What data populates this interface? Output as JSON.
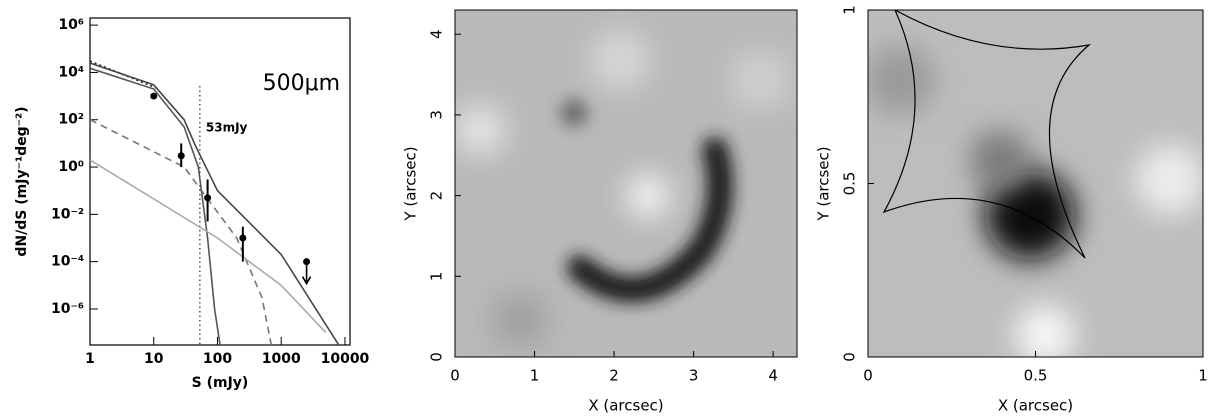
{
  "chart_data": [
    {
      "type": "line",
      "title": "500μm",
      "annotation": "53mJy",
      "vline": 53,
      "xlabel": "S (mJy)",
      "ylabel": "dN/dS (mJy⁻¹deg⁻²)",
      "xlog": true,
      "ylog": true,
      "xlim": [
        1,
        12000
      ],
      "ylim": [
        3e-08,
        2000000
      ],
      "xticks": [
        1,
        10,
        100,
        1000,
        10000
      ],
      "yticks": [
        {
          "value": 1000000,
          "label": "10⁶"
        },
        {
          "value": 10000,
          "label": "10⁴"
        },
        {
          "value": 100,
          "label": "10²"
        },
        {
          "value": 1,
          "label": "10⁰"
        },
        {
          "value": 0.01,
          "label": "10⁻²"
        },
        {
          "value": 0.0001,
          "label": "10⁻⁴"
        },
        {
          "value": 1e-06,
          "label": "10⁻⁶"
        }
      ],
      "series": [
        {
          "color": "#222222",
          "dash": "2,3",
          "x": [
            1,
            12
          ],
          "values": [
            30000,
            2000
          ]
        },
        {
          "color": "#444444",
          "dash": "none",
          "x": [
            1,
            10,
            30,
            45,
            100,
            1000,
            8000
          ],
          "values": [
            25000,
            3000,
            100,
            8,
            0.1,
            0.0002,
            3e-08
          ]
        },
        {
          "color": "#555555",
          "dash": "none",
          "x": [
            1,
            10,
            30,
            50,
            70,
            90,
            110
          ],
          "values": [
            15000,
            2000,
            50,
            1,
            0.001,
            1e-06,
            3e-08
          ]
        },
        {
          "color": "#777777",
          "dash": "7,5",
          "x": [
            1,
            30,
            200,
            500,
            700
          ],
          "values": [
            100,
            1,
            0.001,
            3e-06,
            3e-08
          ]
        },
        {
          "color": "#aaaaaa",
          "dash": "none",
          "x": [
            1,
            100,
            1000,
            5000
          ],
          "values": [
            2,
            0.001,
            1e-05,
            1e-07
          ]
        }
      ],
      "points": {
        "x": [
          10,
          27,
          70,
          250,
          2500
        ],
        "values": [
          1000,
          3,
          0.05,
          0.001,
          0.0001
        ],
        "err_low": [
          null,
          1,
          0.005,
          0.0001,
          null
        ],
        "err_high": [
          null,
          10,
          0.3,
          0.003,
          null
        ],
        "upper_limit": [
          false,
          false,
          false,
          false,
          true
        ]
      }
    },
    {
      "type": "image",
      "xlabel": "X (arcsec)",
      "ylabel": "Y (arcsec)",
      "xlim": [
        0,
        4.3
      ],
      "ylim": [
        0,
        4.3
      ],
      "xticks": [
        0,
        1,
        2,
        3,
        4
      ],
      "yticks": [
        0,
        1,
        2,
        3,
        4
      ]
    },
    {
      "type": "image",
      "xlabel": "X (arcsec)",
      "ylabel": "Y (arcsec)",
      "xlim": [
        0,
        1
      ],
      "ylim": [
        0,
        1
      ],
      "xticks": [
        0,
        0.5,
        1
      ],
      "yticks": [
        0,
        0.5,
        1
      ]
    }
  ]
}
